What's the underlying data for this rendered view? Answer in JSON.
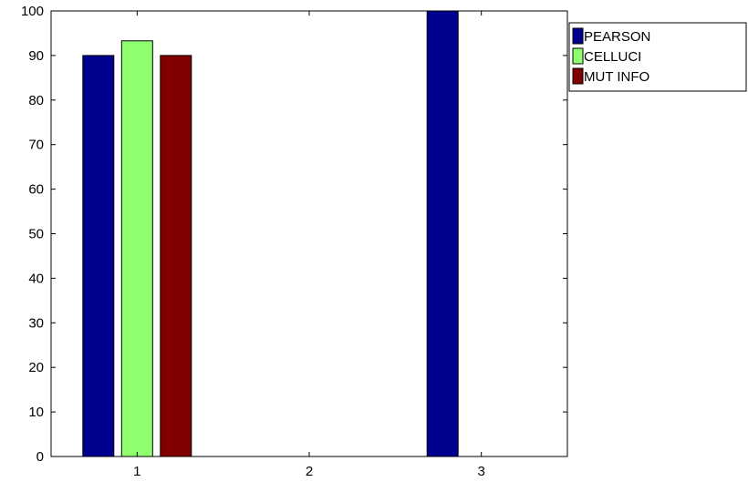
{
  "chart_data": {
    "type": "bar",
    "categories": [
      "1",
      "2",
      "3"
    ],
    "series": [
      {
        "name": "PEARSON",
        "color": "#00008f",
        "values": [
          90,
          0,
          100
        ]
      },
      {
        "name": "CELLUCI",
        "color": "#8fff70",
        "values": [
          93.3,
          0,
          0
        ]
      },
      {
        "name": "MUT INFO",
        "color": "#800000",
        "values": [
          90,
          0,
          0
        ]
      }
    ],
    "ylim": [
      0,
      100
    ],
    "yticks": [
      0,
      10,
      20,
      30,
      40,
      50,
      60,
      70,
      80,
      90,
      100
    ],
    "grid": false,
    "legend_position": "top-right, outside plot"
  }
}
